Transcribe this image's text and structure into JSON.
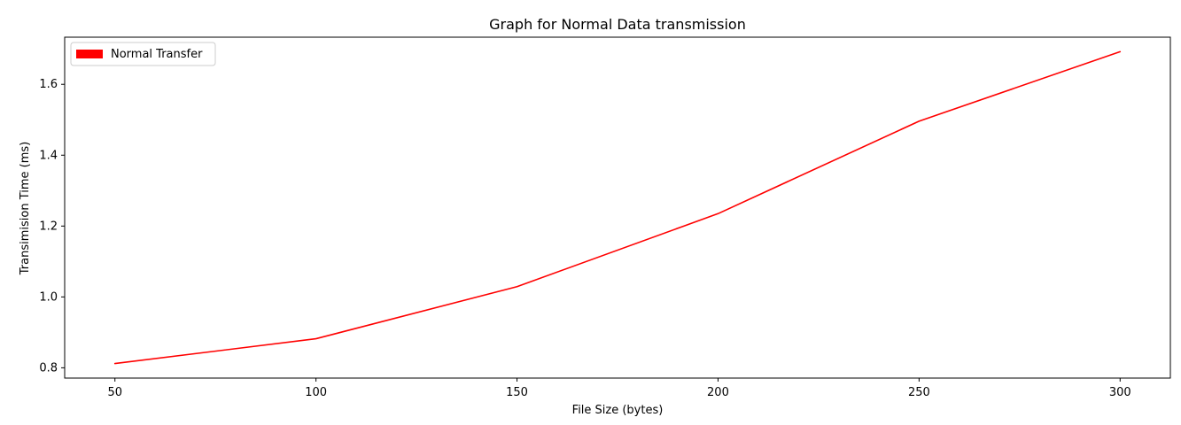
{
  "chart_data": {
    "type": "line",
    "title": "Graph for Normal Data transmission",
    "xlabel": "File Size (bytes)",
    "ylabel": "Transimision Time (ms)",
    "x": [
      50,
      100,
      150,
      200,
      250,
      300
    ],
    "x_ticks": [
      "50",
      "100",
      "150",
      "200",
      "250",
      "300"
    ],
    "y_ticks": [
      "0.8",
      "1.0",
      "1.2",
      "1.4",
      "1.6"
    ],
    "xlim": [
      37.5,
      312.5
    ],
    "ylim": [
      0.771,
      1.733
    ],
    "series": [
      {
        "name": "Normal Transfer",
        "color": "#ff0000",
        "values": [
          0.812,
          0.882,
          1.029,
          1.235,
          1.496,
          1.692
        ]
      }
    ],
    "legend_position": "top-left",
    "grid": false
  }
}
